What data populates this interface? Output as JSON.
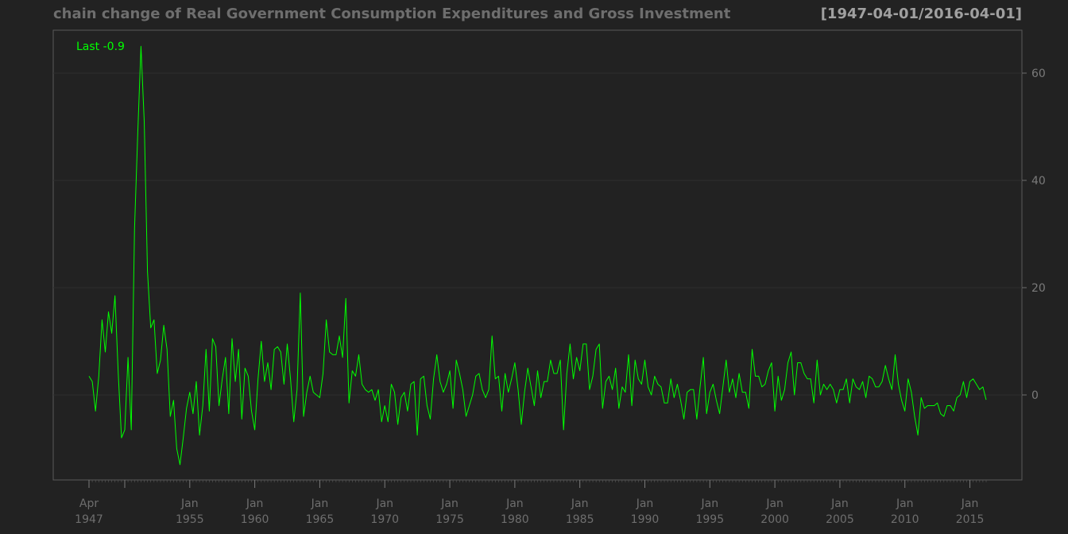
{
  "chart_data": {
    "type": "line",
    "title": "chain change of Real Government Consumption Expenditures and Gross Investment",
    "date_range": "[1947-04-01/2016-04-01]",
    "legend": "Last -0.9",
    "y_ticks": [
      0,
      20,
      40,
      60
    ],
    "ylim": [
      -16,
      68
    ],
    "x_ticks": [
      {
        "month": "Apr",
        "year": "1947"
      },
      {
        "month": "Jan",
        "year": "1955"
      },
      {
        "month": "Jan",
        "year": "1960"
      },
      {
        "month": "Jan",
        "year": "1965"
      },
      {
        "month": "Jan",
        "year": "1970"
      },
      {
        "month": "Jan",
        "year": "1975"
      },
      {
        "month": "Jan",
        "year": "1980"
      },
      {
        "month": "Jan",
        "year": "1985"
      },
      {
        "month": "Jan",
        "year": "1990"
      },
      {
        "month": "Jan",
        "year": "1995"
      },
      {
        "month": "Jan",
        "year": "2000"
      },
      {
        "month": "Jan",
        "year": "2005"
      },
      {
        "month": "Jan",
        "year": "2010"
      },
      {
        "month": "Jan",
        "year": "2015"
      }
    ],
    "series": [
      {
        "x": [
          "1947-04-01",
          "1947-07-01",
          "1947-10-01",
          "1948-01-01",
          "1948-04-01",
          "1948-07-01",
          "1948-10-01",
          "1949-01-01",
          "1949-04-01",
          "1949-07-01",
          "1949-10-01",
          "1950-01-01",
          "1950-04-01",
          "1950-07-01",
          "1950-10-01",
          "1951-01-01",
          "1951-04-01",
          "1951-07-01",
          "1951-10-01",
          "1952-01-01",
          "1952-04-01",
          "1952-07-01",
          "1952-10-01",
          "1953-01-01",
          "1953-04-01",
          "1953-07-01",
          "1953-10-01",
          "1954-01-01",
          "1954-04-01",
          "1954-07-01",
          "1954-10-01",
          "1955-01-01",
          "1955-04-01",
          "1955-07-01",
          "1955-10-01",
          "1956-01-01",
          "1956-04-01",
          "1956-07-01",
          "1956-10-01",
          "1957-01-01",
          "1957-04-01",
          "1957-07-01",
          "1957-10-01",
          "1958-01-01",
          "1958-04-01",
          "1958-07-01",
          "1958-10-01",
          "1959-01-01",
          "1959-04-01",
          "1959-07-01",
          "1959-10-01",
          "1960-01-01",
          "1960-04-01",
          "1960-07-01",
          "1960-10-01",
          "1961-01-01",
          "1961-04-01",
          "1961-07-01",
          "1961-10-01",
          "1962-01-01",
          "1962-04-01",
          "1962-07-01",
          "1962-10-01",
          "1963-01-01",
          "1963-04-01",
          "1963-07-01",
          "1963-10-01",
          "1964-01-01",
          "1964-04-01",
          "1964-07-01",
          "1964-10-01",
          "1965-01-01",
          "1965-04-01",
          "1965-07-01",
          "1965-10-01",
          "1966-01-01",
          "1966-04-01",
          "1966-07-01",
          "1966-10-01",
          "1967-01-01",
          "1967-04-01",
          "1967-07-01",
          "1967-10-01",
          "1968-01-01",
          "1968-04-01",
          "1968-07-01",
          "1968-10-01",
          "1969-01-01",
          "1969-04-01",
          "1969-07-01",
          "1969-10-01",
          "1970-01-01",
          "1970-04-01",
          "1970-07-01",
          "1970-10-01",
          "1971-01-01",
          "1971-04-01",
          "1971-07-01",
          "1971-10-01",
          "1972-01-01",
          "1972-04-01",
          "1972-07-01",
          "1972-10-01",
          "1973-01-01",
          "1973-04-01",
          "1973-07-01",
          "1973-10-01",
          "1974-01-01",
          "1974-04-01",
          "1974-07-01",
          "1974-10-01",
          "1975-01-01",
          "1975-04-01",
          "1975-07-01",
          "1975-10-01",
          "1976-01-01",
          "1976-04-01",
          "1976-07-01",
          "1976-10-01",
          "1977-01-01",
          "1977-04-01",
          "1977-07-01",
          "1977-10-01",
          "1978-01-01",
          "1978-04-01",
          "1978-07-01",
          "1978-10-01",
          "1979-01-01",
          "1979-04-01",
          "1979-07-01",
          "1979-10-01",
          "1980-01-01",
          "1980-04-01",
          "1980-07-01",
          "1980-10-01",
          "1981-01-01",
          "1981-04-01",
          "1981-07-01",
          "1981-10-01",
          "1982-01-01",
          "1982-04-01",
          "1982-07-01",
          "1982-10-01",
          "1983-01-01",
          "1983-04-01",
          "1983-07-01",
          "1983-10-01",
          "1984-01-01",
          "1984-04-01",
          "1984-07-01",
          "1984-10-01",
          "1985-01-01",
          "1985-04-01",
          "1985-07-01",
          "1985-10-01",
          "1986-01-01",
          "1986-04-01",
          "1986-07-01",
          "1986-10-01",
          "1987-01-01",
          "1987-04-01",
          "1987-07-01",
          "1987-10-01",
          "1988-01-01",
          "1988-04-01",
          "1988-07-01",
          "1988-10-01",
          "1989-01-01",
          "1989-04-01",
          "1989-07-01",
          "1989-10-01",
          "1990-01-01",
          "1990-04-01",
          "1990-07-01",
          "1990-10-01",
          "1991-01-01",
          "1991-04-01",
          "1991-07-01",
          "1991-10-01",
          "1992-01-01",
          "1992-04-01",
          "1992-07-01",
          "1992-10-01",
          "1993-01-01",
          "1993-04-01",
          "1993-07-01",
          "1993-10-01",
          "1994-01-01",
          "1994-04-01",
          "1994-07-01",
          "1994-10-01",
          "1995-01-01",
          "1995-04-01",
          "1995-07-01",
          "1995-10-01",
          "1996-01-01",
          "1996-04-01",
          "1996-07-01",
          "1996-10-01",
          "1997-01-01",
          "1997-04-01",
          "1997-07-01",
          "1997-10-01",
          "1998-01-01",
          "1998-04-01",
          "1998-07-01",
          "1998-10-01",
          "1999-01-01",
          "1999-04-01",
          "1999-07-01",
          "1999-10-01",
          "2000-01-01",
          "2000-04-01",
          "2000-07-01",
          "2000-10-01",
          "2001-01-01",
          "2001-04-01",
          "2001-07-01",
          "2001-10-01",
          "2002-01-01",
          "2002-04-01",
          "2002-07-01",
          "2002-10-01",
          "2003-01-01",
          "2003-04-01",
          "2003-07-01",
          "2003-10-01",
          "2004-01-01",
          "2004-04-01",
          "2004-07-01",
          "2004-10-01",
          "2005-01-01",
          "2005-04-01",
          "2005-07-01",
          "2005-10-01",
          "2006-01-01",
          "2006-04-01",
          "2006-07-01",
          "2006-10-01",
          "2007-01-01",
          "2007-04-01",
          "2007-07-01",
          "2007-10-01",
          "2008-01-01",
          "2008-04-01",
          "2008-07-01",
          "2008-10-01",
          "2009-01-01",
          "2009-04-01",
          "2009-07-01",
          "2009-10-01",
          "2010-01-01",
          "2010-04-01",
          "2010-07-01",
          "2010-10-01",
          "2011-01-01",
          "2011-04-01",
          "2011-07-01",
          "2011-10-01",
          "2012-01-01",
          "2012-04-01",
          "2012-07-01",
          "2012-10-01",
          "2013-01-01",
          "2013-04-01",
          "2013-07-01",
          "2013-10-01",
          "2014-01-01",
          "2014-04-01",
          "2014-07-01",
          "2014-10-01",
          "2015-01-01",
          "2015-04-01",
          "2015-07-01",
          "2015-10-01",
          "2016-01-01",
          "2016-04-01"
        ],
        "values": [
          3.5,
          2.5,
          -3.0,
          3.5,
          14.0,
          8.0,
          15.5,
          11.5,
          18.5,
          4.0,
          -8.0,
          -6.5,
          7.0,
          -6.5,
          31.0,
          49.0,
          65.0,
          51.0,
          23.0,
          12.5,
          14.0,
          4.0,
          6.5,
          13.0,
          8.5,
          -4.0,
          -1.0,
          -10.0,
          -13.0,
          -8.0,
          -2.5,
          0.5,
          -3.5,
          2.5,
          -7.5,
          -2.0,
          8.5,
          -3.0,
          10.5,
          9.0,
          -2.0,
          3.0,
          7.0,
          -3.5,
          10.5,
          2.5,
          8.5,
          -4.5,
          5.0,
          3.5,
          -3.0,
          -6.5,
          3.0,
          10.0,
          2.5,
          6.0,
          1.0,
          8.5,
          9.0,
          8.0,
          2.0,
          9.5,
          3.0,
          -5.0,
          1.0,
          19.0,
          -4.0,
          0.5,
          3.5,
          0.5,
          0.0,
          -0.5,
          4.0,
          14.0,
          8.0,
          7.5,
          7.5,
          11.0,
          7.0,
          18.0,
          -1.5,
          4.5,
          3.5,
          7.5,
          2.0,
          1.0,
          0.5,
          1.0,
          -1.0,
          1.0,
          -5.0,
          -2.0,
          -5.0,
          2.0,
          0.5,
          -5.5,
          -0.5,
          0.5,
          -3.0,
          2.0,
          2.5,
          -7.5,
          3.0,
          3.5,
          -2.0,
          -4.5,
          3.0,
          7.5,
          2.5,
          0.5,
          2.0,
          4.5,
          -2.5,
          6.5,
          4.0,
          1.0,
          -4.0,
          -2.0,
          0.0,
          3.5,
          4.0,
          1.0,
          -0.5,
          1.0,
          11.0,
          3.0,
          3.5,
          -3.0,
          4.0,
          0.5,
          3.0,
          6.0,
          1.0,
          -5.5,
          0.5,
          5.0,
          1.5,
          -2.0,
          4.5,
          -0.5,
          2.5,
          2.5,
          6.5,
          4.0,
          4.0,
          6.5,
          -6.5,
          4.0,
          9.5,
          3.0,
          7.0,
          4.5,
          9.5,
          9.5,
          1.0,
          3.5,
          8.5,
          9.5,
          -2.5,
          2.5,
          3.5,
          1.0,
          5.0,
          -2.5,
          1.5,
          0.5,
          7.5,
          -2.0,
          6.5,
          3.0,
          2.0,
          6.5,
          1.5,
          0.0,
          3.5,
          2.0,
          1.5,
          -1.5,
          -1.5,
          3.0,
          -0.5,
          2.0,
          -1.0,
          -4.5,
          0.5,
          1.0,
          1.0,
          -4.5,
          1.5,
          7.0,
          -3.5,
          0.5,
          2.0,
          -1.0,
          -3.5,
          1.5,
          6.5,
          0.5,
          3.0,
          -0.5,
          4.0,
          0.5,
          0.5,
          -2.5,
          8.5,
          3.5,
          3.5,
          1.5,
          2.0,
          4.5,
          6.0,
          -3.0,
          3.5,
          -1.0,
          1.0,
          6.0,
          8.0,
          0.0,
          6.0,
          6.0,
          4.0,
          3.0,
          3.0,
          -1.5,
          6.5,
          0.0,
          2.0,
          1.0,
          2.0,
          1.0,
          -1.5,
          1.0,
          1.0,
          3.0,
          -1.5,
          3.0,
          1.5,
          1.0,
          2.5,
          -0.5,
          3.5,
          3.0,
          1.5,
          1.5,
          2.5,
          5.5,
          3.0,
          1.0,
          7.5,
          2.0,
          -1.0,
          -3.0,
          3.0,
          0.5,
          -4.0,
          -7.5,
          -0.5,
          -2.5,
          -2.0,
          -2.0,
          -2.0,
          -1.5,
          -3.5,
          -4.0,
          -2.0,
          -2.0,
          -3.0,
          -0.5,
          0.0,
          2.5,
          -0.5,
          2.5,
          3.0,
          2.0,
          1.0,
          1.5,
          -0.9
        ]
      }
    ]
  }
}
